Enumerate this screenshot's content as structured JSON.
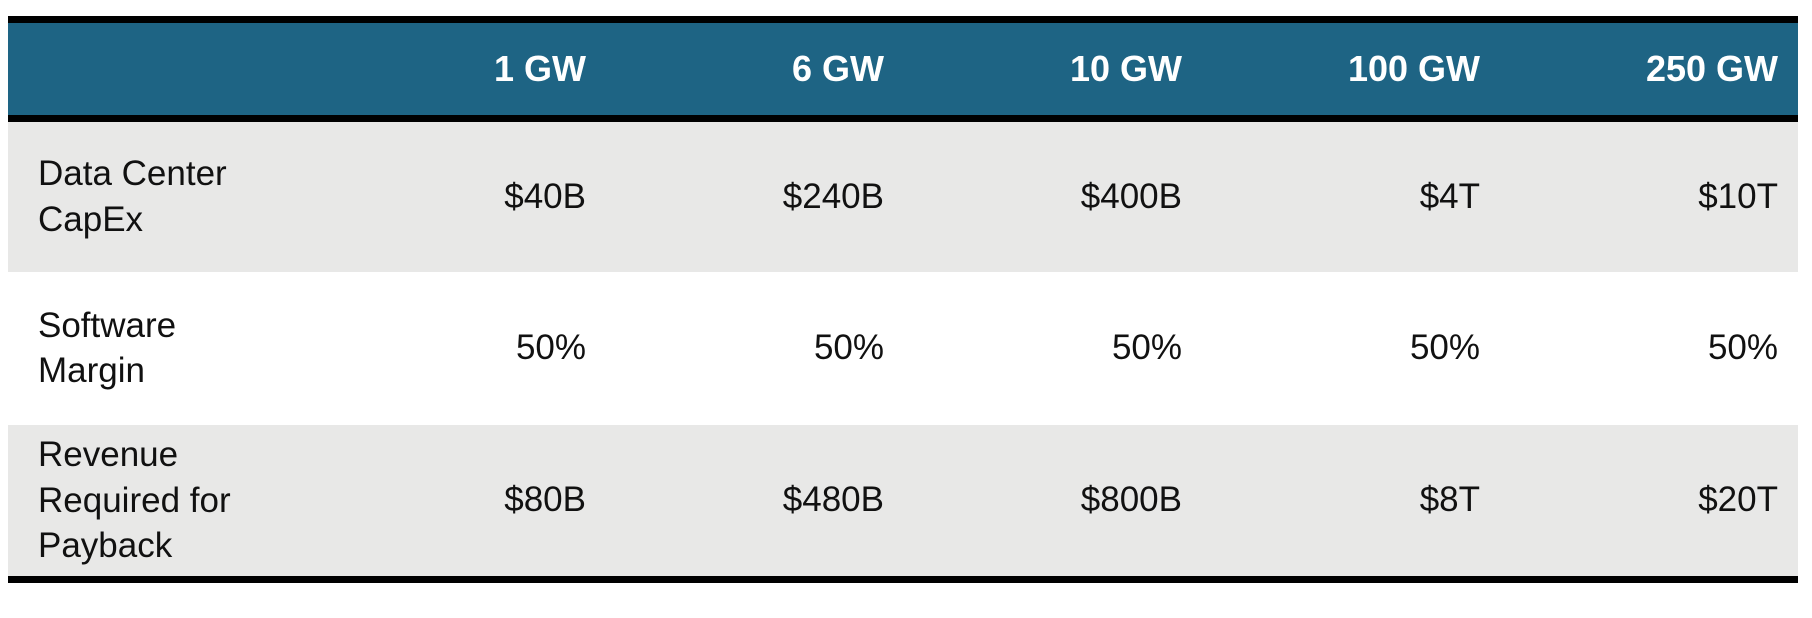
{
  "table": {
    "header": {
      "corner": "",
      "columns": [
        "1 GW",
        "6 GW",
        "10 GW",
        "100 GW",
        "250 GW"
      ]
    },
    "rows": [
      {
        "label": "Data Center\nCapEx",
        "values": [
          "$40B",
          "$240B",
          "$400B",
          "$4T",
          "$10T"
        ]
      },
      {
        "label": "Software\nMargin",
        "values": [
          "50%",
          "50%",
          "50%",
          "50%",
          "50%"
        ]
      },
      {
        "label": "Revenue\nRequired for\nPayback",
        "values": [
          "$80B",
          "$480B",
          "$800B",
          "$8T",
          "$20T"
        ]
      }
    ],
    "colors": {
      "header_bg": "#1e6484",
      "header_text": "#ffffff",
      "stripe_bg": "#e8e8e7",
      "white_bg": "#ffffff",
      "border": "#000000",
      "body_text": "#111111"
    }
  },
  "chart_data": {
    "type": "table",
    "title": "",
    "columns": [
      "1 GW",
      "6 GW",
      "10 GW",
      "100 GW",
      "250 GW"
    ],
    "row_labels": [
      "Data Center CapEx",
      "Software Margin",
      "Revenue Required for Payback"
    ],
    "rows": [
      [
        "$40B",
        "$240B",
        "$400B",
        "$4T",
        "$10T"
      ],
      [
        "50%",
        "50%",
        "50%",
        "50%",
        "50%"
      ],
      [
        "$80B",
        "$480B",
        "$800B",
        "$8T",
        "$20T"
      ]
    ],
    "layout": {
      "stripe_rows": [
        0,
        2
      ],
      "value_alignment": "right",
      "label_alignment": "left",
      "thick_rules": [
        "top",
        "below-header",
        "bottom"
      ]
    }
  }
}
